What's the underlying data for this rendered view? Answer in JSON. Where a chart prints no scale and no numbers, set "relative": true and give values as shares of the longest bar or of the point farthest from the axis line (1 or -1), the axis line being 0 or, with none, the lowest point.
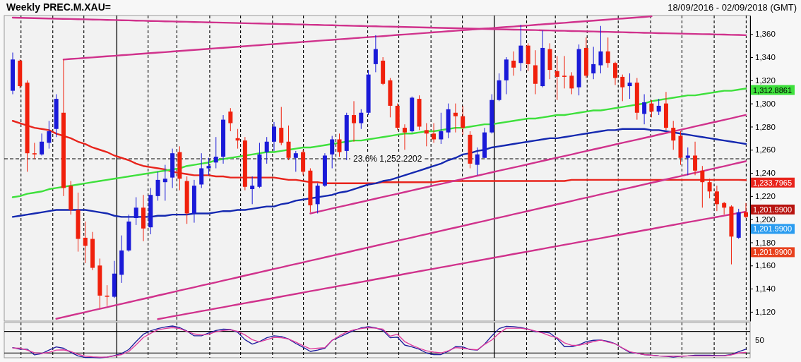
{
  "chart_data": [
    {
      "type": "candlestick",
      "title": "Weekly PREC.M.XAU=",
      "subtitle": "18/09/2016 - 02/09/2018 (GMT)",
      "categories": [
        null,
        null,
        null,
        null,
        null,
        null,
        null,
        null,
        null,
        null,
        null,
        null,
        null,
        null,
        null,
        null,
        null,
        null,
        null,
        null,
        null,
        null,
        null,
        null,
        null,
        null,
        null,
        null,
        null,
        null,
        null,
        null,
        null,
        null,
        null,
        null,
        null,
        null,
        null,
        null,
        null,
        null,
        null,
        null,
        null,
        null,
        null,
        null,
        null,
        null,
        null,
        null,
        null,
        null,
        null,
        null,
        null,
        null,
        null,
        null,
        null,
        null,
        null,
        null,
        null,
        null,
        null,
        null,
        null,
        null,
        null,
        null,
        null,
        null,
        null,
        null,
        null,
        null,
        null,
        null,
        null,
        null,
        null,
        null,
        null,
        null,
        null,
        null,
        null,
        null,
        null,
        null,
        null,
        null,
        null,
        null,
        null,
        null,
        null,
        null,
        null,
        null
      ],
      "ohlc": [
        [
          1311,
          1344,
          1308,
          1338
        ],
        [
          1337,
          1338,
          1313,
          1315
        ],
        [
          1318,
          1320,
          1241,
          1257
        ],
        [
          1257,
          1266,
          1252,
          1256
        ],
        [
          1256,
          1274,
          1255,
          1267
        ],
        [
          1266,
          1285,
          1261,
          1276
        ],
        [
          1278,
          1308,
          1271,
          1304
        ],
        [
          1292,
          1338,
          1220,
          1227
        ],
        [
          1229,
          1233,
          1204,
          1208
        ],
        [
          1208,
          1223,
          1172,
          1183
        ],
        [
          1184,
          1198,
          1162,
          1177
        ],
        [
          1183,
          1189,
          1156,
          1158
        ],
        [
          1160,
          1166,
          1123,
          1134
        ],
        [
          1134,
          1143,
          1125,
          1133
        ],
        [
          1133,
          1164,
          1132,
          1153
        ],
        [
          1152,
          1186,
          1145,
          1173
        ],
        [
          1173,
          1204,
          1172,
          1198
        ],
        [
          1201,
          1219,
          1195,
          1210
        ],
        [
          1210,
          1221,
          1181,
          1192
        ],
        [
          1193,
          1227,
          1187,
          1221
        ],
        [
          1220,
          1241,
          1216,
          1234
        ],
        [
          1232,
          1247,
          1216,
          1235
        ],
        [
          1236,
          1261,
          1227,
          1257
        ],
        [
          1258,
          1263,
          1225,
          1235
        ],
        [
          1233,
          1237,
          1196,
          1205
        ],
        [
          1205,
          1234,
          1197,
          1229
        ],
        [
          1230,
          1257,
          1227,
          1244
        ],
        [
          1244,
          1253,
          1238,
          1246
        ],
        [
          1249,
          1271,
          1244,
          1254
        ],
        [
          1254,
          1290,
          1248,
          1286
        ],
        [
          1293,
          1296,
          1276,
          1283
        ],
        [
          1270,
          1278,
          1261,
          1268
        ],
        [
          1268,
          1271,
          1225,
          1228
        ],
        [
          1226,
          1237,
          1213,
          1229
        ],
        [
          1228,
          1266,
          1227,
          1256
        ],
        [
          1258,
          1271,
          1248,
          1267
        ],
        [
          1267,
          1284,
          1259,
          1280
        ],
        [
          1279,
          1297,
          1264,
          1266
        ],
        [
          1267,
          1281,
          1251,
          1253
        ],
        [
          1253,
          1259,
          1241,
          1257
        ],
        [
          1258,
          1260,
          1238,
          1241
        ],
        [
          1242,
          1244,
          1206,
          1212
        ],
        [
          1213,
          1231,
          1205,
          1229
        ],
        [
          1229,
          1257,
          1228,
          1255
        ],
        [
          1256,
          1272,
          1244,
          1269
        ],
        [
          1269,
          1274,
          1254,
          1258
        ],
        [
          1259,
          1292,
          1251,
          1290
        ],
        [
          1290,
          1302,
          1267,
          1283
        ],
        [
          1283,
          1295,
          1278,
          1292
        ],
        [
          1292,
          1329,
          1290,
          1325
        ],
        [
          1334,
          1359,
          1327,
          1347
        ],
        [
          1337,
          1340,
          1316,
          1317
        ],
        [
          1320,
          1322,
          1288,
          1298
        ],
        [
          1298,
          1300,
          1277,
          1279
        ],
        [
          1279,
          1282,
          1260,
          1275
        ],
        [
          1276,
          1306,
          1275,
          1305
        ],
        [
          1304,
          1307,
          1277,
          1280
        ],
        [
          1277,
          1283,
          1263,
          1274
        ],
        [
          1274,
          1283,
          1266,
          1269
        ],
        [
          1269,
          1292,
          1265,
          1276
        ],
        [
          1275,
          1300,
          1270,
          1295
        ],
        [
          1292,
          1300,
          1275,
          1289
        ],
        [
          1289,
          1298,
          1273,
          1279
        ],
        [
          1273,
          1276,
          1244,
          1248
        ],
        [
          1247,
          1262,
          1238,
          1256
        ],
        [
          1253,
          1279,
          1253,
          1275
        ],
        [
          1275,
          1308,
          1274,
          1303
        ],
        [
          1303,
          1326,
          1302,
          1320
        ],
        [
          1320,
          1340,
          1308,
          1338
        ],
        [
          1337,
          1345,
          1324,
          1331
        ],
        [
          1335,
          1368,
          1328,
          1350
        ],
        [
          1350,
          1352,
          1328,
          1334
        ],
        [
          1333,
          1346,
          1308,
          1317
        ],
        [
          1315,
          1363,
          1314,
          1348
        ],
        [
          1347,
          1352,
          1321,
          1329
        ],
        [
          1328,
          1341,
          1303,
          1323
        ],
        [
          1324,
          1341,
          1313,
          1323
        ],
        [
          1324,
          1327,
          1308,
          1313
        ],
        [
          1314,
          1351,
          1307,
          1347
        ],
        [
          1348,
          1357,
          1322,
          1324
        ],
        [
          1326,
          1349,
          1321,
          1334
        ],
        [
          1333,
          1367,
          1326,
          1345
        ],
        [
          1345,
          1357,
          1331,
          1335
        ],
        [
          1335,
          1336,
          1316,
          1322
        ],
        [
          1323,
          1325,
          1302,
          1314
        ],
        [
          1315,
          1326,
          1304,
          1318
        ],
        [
          1318,
          1322,
          1286,
          1292
        ],
        [
          1291,
          1308,
          1282,
          1301
        ],
        [
          1300,
          1303,
          1288,
          1293
        ],
        [
          1293,
          1304,
          1290,
          1298
        ],
        [
          1300,
          1310,
          1277,
          1279
        ],
        [
          1279,
          1285,
          1260,
          1268
        ],
        [
          1272,
          1276,
          1247,
          1253
        ],
        [
          1253,
          1262,
          1238,
          1255
        ],
        [
          1255,
          1267,
          1238,
          1242
        ],
        [
          1242,
          1246,
          1210,
          1232
        ],
        [
          1232,
          1235,
          1218,
          1224
        ],
        [
          1224,
          1229,
          1207,
          1213
        ],
        [
          1214,
          1215,
          1204,
          1210
        ],
        [
          1211,
          1212,
          1161,
          1185
        ],
        [
          1184,
          1209,
          1183,
          1206
        ],
        [
          1206,
          1214,
          1201,
          1201.99
        ]
      ],
      "colors": [
        "#1a1ad8",
        "#f0200c",
        "#f0200c",
        "#f0200c",
        "#1a1ad8",
        "#1a1ad8",
        "#1a1ad8",
        "#f0200c",
        "#f0200c",
        "#f0200c",
        "#f0200c",
        "#f0200c",
        "#f0200c",
        "#f0200c",
        "#1a1ad8",
        "#1a1ad8",
        "#1a1ad8",
        "#1a1ad8",
        "#f0200c",
        "#1a1ad8",
        "#1a1ad8",
        "#1a1ad8",
        "#1a1ad8",
        "#f0200c",
        "#f0200c",
        "#1a1ad8",
        "#1a1ad8",
        "#1a1ad8",
        "#1a1ad8",
        "#1a1ad8",
        "#f0200c",
        "#f0200c",
        "#f0200c",
        "#1a1ad8",
        "#1a1ad8",
        "#1a1ad8",
        "#1a1ad8",
        "#f0200c",
        "#f0200c",
        "#1a1ad8",
        "#f0200c",
        "#f0200c",
        "#1a1ad8",
        "#1a1ad8",
        "#1a1ad8",
        "#f0200c",
        "#1a1ad8",
        "#f0200c",
        "#1a1ad8",
        "#1a1ad8",
        "#1a1ad8",
        "#f0200c",
        "#f0200c",
        "#f0200c",
        "#f0200c",
        "#1a1ad8",
        "#f0200c",
        "#f0200c",
        "#f0200c",
        "#1a1ad8",
        "#1a1ad8",
        "#f0200c",
        "#f0200c",
        "#f0200c",
        "#1a1ad8",
        "#1a1ad8",
        "#1a1ad8",
        "#1a1ad8",
        "#1a1ad8",
        "#f0200c",
        "#1a1ad8",
        "#f0200c",
        "#f0200c",
        "#1a1ad8",
        "#f0200c",
        "#f0200c",
        "#f0200c",
        "#f0200c",
        "#1a1ad8",
        "#f0200c",
        "#1a1ad8",
        "#1a1ad8",
        "#f0200c",
        "#f0200c",
        "#f0200c",
        "#1a1ad8",
        "#f0200c",
        "#1a1ad8",
        "#f0200c",
        "#1a1ad8",
        "#f0200c",
        "#f0200c",
        "#f0200c",
        "#1a1ad8",
        "#f0200c",
        "#f0200c",
        "#f0200c",
        "#f0200c",
        "#f0200c",
        "#f0200c",
        "#1a1ad8",
        "#f0200c"
      ],
      "series": [
        {
          "type": "line",
          "color": "#e8241c",
          "values": [
            1285,
            1283,
            1281,
            1279,
            1278,
            1277,
            1274,
            1272,
            1270,
            1267,
            1265,
            1262,
            1260,
            1258,
            1255,
            1253,
            1251,
            1248,
            1246,
            1245,
            1244,
            1243,
            1241,
            1240,
            1239,
            1238,
            1238,
            1238,
            1237,
            1237,
            1236,
            1236,
            1236,
            1236,
            1236,
            1236,
            1236,
            1235,
            1234,
            1234,
            1233,
            1232,
            1232,
            1231,
            1231,
            1231,
            1231,
            1231,
            1231,
            1231,
            1231,
            1232,
            1232,
            1232,
            1232,
            1232,
            1232,
            1232,
            1232,
            1233,
            1233,
            1233,
            1233,
            1233,
            1233,
            1233,
            1233,
            1233,
            1233,
            1233,
            1233,
            1233,
            1233,
            1233,
            1233,
            1233,
            1233,
            1234,
            1234,
            1234,
            1234,
            1234,
            1234,
            1234,
            1234,
            1234,
            1234,
            1234,
            1234,
            1234,
            1234,
            1234,
            1234,
            1234,
            1234,
            1234,
            1234,
            1234,
            1234,
            1234,
            1234,
            1233.7965
          ],
          "value_labels": [
            null,
            null,
            null,
            null,
            null,
            null,
            null,
            null,
            null,
            null,
            null,
            null,
            null,
            null,
            null,
            null,
            null,
            null,
            null,
            null,
            null,
            null,
            null,
            null,
            null,
            null,
            null,
            null,
            null,
            null,
            null,
            null,
            null,
            null,
            null,
            null,
            null,
            null,
            null,
            null,
            null,
            null,
            null,
            null,
            null,
            null,
            null,
            null,
            null,
            null,
            null,
            null,
            null,
            null,
            null,
            null,
            null,
            null,
            null,
            null,
            null,
            null,
            null,
            null,
            null,
            null,
            null,
            null,
            null,
            null,
            null,
            null,
            null,
            null,
            null,
            null,
            null,
            null,
            null,
            null,
            null,
            null,
            null,
            null,
            null,
            null,
            null,
            null,
            null,
            null,
            null,
            null,
            null,
            null,
            null,
            null,
            null,
            null,
            null,
            null,
            null,
            "1,233.7965"
          ]
        },
        {
          "type": "line",
          "color": "#1428b0",
          "values": [
            1202,
            1203,
            1204,
            1205,
            1206,
            1207,
            1208,
            1208,
            1208,
            1208,
            1208,
            1207,
            1206,
            1205,
            1203,
            1202,
            1202,
            1202,
            1202,
            1202,
            1203,
            1203,
            1204,
            1204,
            1204,
            1205,
            1205,
            1205,
            1206,
            1207,
            1207,
            1208,
            1208,
            1209,
            1210,
            1211,
            1211,
            1213,
            1214,
            1216,
            1217,
            1218,
            1219,
            1220,
            1221,
            1223,
            1224,
            1226,
            1228,
            1230,
            1231,
            1233,
            1234,
            1236,
            1238,
            1240,
            1242,
            1244,
            1246,
            1248,
            1251,
            1253,
            1256,
            1257,
            1259,
            1260,
            1262,
            1263,
            1264,
            1265,
            1266,
            1267,
            1268,
            1269,
            1270,
            1270,
            1271,
            1272,
            1273,
            1274,
            1275,
            1276,
            1277,
            1277,
            1278,
            1278,
            1278,
            1278,
            1277,
            1277,
            1276,
            1275,
            1274,
            1273,
            1272,
            1271,
            1270,
            1269,
            1268,
            1267,
            1266,
            1265
          ]
        },
        {
          "type": "line",
          "color": "#3ee03c",
          "values": [
            1219,
            1220,
            1222,
            1223,
            1224,
            1226,
            1227,
            1228,
            1229,
            1230,
            1231,
            1232,
            1233,
            1234,
            1235,
            1236,
            1237,
            1238,
            1239,
            1240,
            1241,
            1242,
            1243,
            1244,
            1246,
            1247,
            1248,
            1249,
            1251,
            1252,
            1253,
            1254,
            1255,
            1256,
            1257,
            1258,
            1258,
            1259,
            1260,
            1261,
            1262,
            1262,
            1263,
            1264,
            1265,
            1266,
            1267,
            1268,
            1268,
            1269,
            1270,
            1271,
            1272,
            1273,
            1274,
            1274,
            1275,
            1276,
            1276,
            1277,
            1278,
            1279,
            1279,
            1280,
            1281,
            1282,
            1282,
            1283,
            1284,
            1285,
            1286,
            1287,
            1287,
            1288,
            1289,
            1290,
            1290,
            1291,
            1292,
            1293,
            1294,
            1294,
            1295,
            1296,
            1297,
            1298,
            1299,
            1300,
            1302,
            1303,
            1304,
            1305,
            1306,
            1307,
            1307,
            1308,
            1309,
            1310,
            1311,
            1311,
            1312,
            1312.8861
          ],
          "value_labels": [
            null,
            null,
            null,
            null,
            null,
            null,
            null,
            null,
            null,
            null,
            null,
            null,
            null,
            null,
            null,
            null,
            null,
            null,
            null,
            null,
            null,
            null,
            null,
            null,
            null,
            null,
            null,
            null,
            null,
            null,
            null,
            null,
            null,
            null,
            null,
            null,
            null,
            null,
            null,
            null,
            null,
            null,
            null,
            null,
            null,
            null,
            null,
            null,
            null,
            null,
            null,
            null,
            null,
            null,
            null,
            null,
            null,
            null,
            null,
            null,
            null,
            null,
            null,
            null,
            null,
            null,
            null,
            null,
            null,
            null,
            null,
            null,
            null,
            null,
            null,
            null,
            null,
            null,
            null,
            null,
            null,
            null,
            null,
            null,
            null,
            null,
            null,
            null,
            null,
            null,
            null,
            null,
            null,
            null,
            null,
            null,
            null,
            null,
            null,
            null,
            null,
            "1,312.8861"
          ]
        },
        {
          "type": "line",
          "color": "#d0328c",
          "values": [
            1374.2,
            1374.0,
            1373.9,
            1373.7,
            1373.6,
            1373.4,
            1373.3,
            1373.1,
            1373.0,
            1372.8,
            1372.7,
            1372.5,
            1372.4,
            1372.2,
            1372.1,
            1371.9,
            1371.8,
            1371.6,
            1371.5,
            1371.3,
            1371.2,
            1371.0,
            1370.9,
            1370.7,
            1370.6,
            1370.4,
            1370.3,
            1370.1,
            1370.0,
            1369.8,
            1369.7,
            1369.5,
            1369.4,
            1369.2,
            1369.1,
            1368.9,
            1368.8,
            1368.6,
            1368.5,
            1368.3,
            1368.2,
            1368.0,
            1367.9,
            1367.7,
            1367.6,
            1367.4,
            1367.3,
            1367.1,
            1367.0,
            1366.8,
            1366.7,
            1366.5,
            1366.4,
            1366.2,
            1366.1,
            1365.9,
            1365.8,
            1365.6,
            1365.5,
            1365.3,
            1365.2,
            1365.0,
            1364.9,
            1364.7,
            1364.6,
            1364.4,
            1364.3,
            1364.1,
            1364.0,
            1363.8,
            1363.7,
            1363.5,
            1363.4,
            1363.2,
            1363.1,
            1362.9,
            1362.8,
            1362.6,
            1362.5,
            1362.3,
            1362.2,
            1362.0,
            1361.9,
            1361.7,
            1361.6,
            1361.4,
            1361.3,
            1361.1,
            1361.0,
            1360.8,
            1360.7,
            1360.5,
            1360.4,
            1360.2,
            1360.1,
            1359.9,
            1359.8,
            1359.6,
            1359.5,
            1359.3,
            1359.2,
            1359.0
          ]
        },
        {
          "type": "line",
          "color": "#d0328c",
          "values": [
            null,
            null,
            null,
            null,
            null,
            null,
            null,
            1338.0,
            1338.5,
            1338.9,
            1339.4,
            1339.8,
            1340.3,
            1340.8,
            1341.2,
            1341.7,
            1342.1,
            1342.6,
            1343.1,
            1343.5,
            1344.0,
            1344.4,
            1344.9,
            1345.4,
            1345.8,
            1346.3,
            1346.7,
            1347.2,
            1347.7,
            1348.1,
            1348.6,
            1349.0,
            1349.5,
            1350.0,
            1350.4,
            1350.9,
            1351.3,
            1351.8,
            1352.3,
            1352.7,
            1353.2,
            1353.6,
            1354.1,
            1354.6,
            1355.0,
            1355.5,
            1355.9,
            1356.4,
            1356.9,
            1357.3,
            1357.8,
            1358.2,
            1358.7,
            1359.2,
            1359.6,
            1360.1,
            1360.5,
            1361.0,
            1361.5,
            1361.9,
            1362.4,
            1362.8,
            1363.3,
            1363.8,
            1364.2,
            1364.7,
            1365.1,
            1365.6,
            1366.1,
            1366.5,
            1367.0,
            1367.4,
            1367.9,
            1368.4,
            1368.8,
            1369.3,
            1369.7,
            1370.2,
            1370.7,
            1371.1,
            1371.6,
            1372.0,
            1372.5,
            1373.0,
            1373.4,
            1373.9,
            1374.3,
            1374.8,
            1375.3,
            null,
            null,
            null,
            null,
            null,
            null,
            null,
            null,
            null,
            null,
            null,
            null,
            null
          ]
        },
        {
          "type": "line",
          "color": "#d0328c",
          "values": [
            null,
            null,
            null,
            null,
            null,
            null,
            null,
            null,
            null,
            null,
            null,
            null,
            null,
            null,
            null,
            null,
            null,
            null,
            null,
            null,
            null,
            null,
            null,
            null,
            null,
            null,
            null,
            null,
            null,
            null,
            null,
            null,
            null,
            null,
            null,
            null,
            null,
            null,
            null,
            null,
            null,
            1205.0,
            1206.4,
            1207.8,
            1209.3,
            1210.7,
            1212.1,
            1213.5,
            1214.9,
            1216.3,
            1217.8,
            1219.2,
            1220.6,
            1222.0,
            1223.4,
            1224.9,
            1226.3,
            1227.7,
            1229.1,
            1230.5,
            1231.9,
            1233.4,
            1234.8,
            1236.2,
            1237.6,
            1239.0,
            1240.5,
            1241.9,
            1243.3,
            1244.7,
            1246.1,
            1247.5,
            1249.0,
            1250.4,
            1251.8,
            1253.2,
            1254.6,
            1256.0,
            1257.5,
            1258.9,
            1260.3,
            1261.7,
            1263.1,
            1264.6,
            1266.0,
            1267.4,
            1268.8,
            1270.2,
            1271.6,
            1273.1,
            1274.5,
            1275.9,
            1277.3,
            1278.7,
            1280.2,
            1281.6,
            1283.0,
            1284.4,
            1285.8,
            1287.2,
            1288.7,
            1290.1
          ]
        },
        {
          "type": "line",
          "color": "#d0328c",
          "values": [
            null,
            null,
            null,
            null,
            null,
            null,
            1114.0,
            1115.4,
            1116.9,
            1118.3,
            1119.7,
            1121.2,
            1122.6,
            1124.0,
            1125.5,
            1126.9,
            1128.3,
            1129.8,
            1131.2,
            1132.6,
            1134.1,
            1135.5,
            1136.9,
            1138.4,
            1139.8,
            1141.2,
            1142.7,
            1144.1,
            1145.5,
            1147.0,
            1148.4,
            1149.8,
            1151.3,
            1152.7,
            1154.1,
            1155.6,
            1157.0,
            1158.4,
            1159.9,
            1161.3,
            1162.7,
            1164.2,
            1165.6,
            1167.0,
            1168.5,
            1169.9,
            1171.3,
            1172.8,
            1174.2,
            1175.6,
            1177.1,
            1178.5,
            1179.9,
            1181.4,
            1182.8,
            1184.2,
            1185.7,
            1187.1,
            1188.5,
            1190.0,
            1191.4,
            1192.8,
            1194.2,
            1195.7,
            1197.1,
            1198.5,
            1200.0,
            1201.4,
            1202.8,
            1204.3,
            1205.7,
            1207.1,
            1208.6,
            1210.0,
            1211.4,
            1212.9,
            1214.3,
            1215.7,
            1217.2,
            1218.6,
            1220.0,
            1221.5,
            1222.9,
            1224.3,
            1225.8,
            1227.2,
            1228.6,
            1230.1,
            1231.5,
            1232.9,
            1234.4,
            1235.8,
            1237.2,
            1238.7,
            1240.1,
            1241.5,
            1243.0,
            1244.4,
            1245.8,
            1247.3,
            1248.7,
            1250.1
          ]
        },
        {
          "type": "line",
          "color": "#d0328c",
          "values": [
            null,
            null,
            null,
            null,
            null,
            null,
            null,
            null,
            null,
            null,
            null,
            null,
            null,
            null,
            null,
            null,
            null,
            null,
            null,
            null,
            1113.7,
            1114.8,
            1116.0,
            1117.1,
            1118.3,
            1119.4,
            1120.6,
            1121.7,
            1122.9,
            1124.0,
            1125.2,
            1126.3,
            1127.5,
            1128.6,
            1129.7,
            1130.9,
            1132.0,
            1133.2,
            1134.3,
            1135.5,
            1136.6,
            1137.8,
            1138.9,
            1140.1,
            1141.2,
            1142.4,
            1143.5,
            1144.6,
            1145.8,
            1146.9,
            1148.1,
            1149.2,
            1150.4,
            1151.5,
            1152.7,
            1153.8,
            1155.0,
            1156.1,
            1157.2,
            1158.4,
            1159.5,
            1160.7,
            1161.8,
            1163.0,
            1164.1,
            1165.3,
            1166.4,
            1167.6,
            1168.7,
            1169.9,
            1171.0,
            1172.1,
            1173.3,
            1174.4,
            1175.6,
            1176.7,
            1177.9,
            1179.0,
            1180.2,
            1181.3,
            1182.5,
            1183.6,
            1184.8,
            1185.9,
            1187.0,
            1188.2,
            1189.3,
            1190.5,
            1191.6,
            1192.8,
            1193.9,
            1195.1,
            1196.2,
            1197.4,
            1198.5,
            1199.7,
            1200.8,
            1201.9,
            1203.1,
            1204.2,
            1205.4,
            1206.5
          ]
        }
      ],
      "ylim": [
        1112,
        1376
      ],
      "yticks": [
        {
          "value": 1120,
          "label": "1,120"
        },
        {
          "value": 1140,
          "label": "1,140"
        },
        {
          "value": 1160,
          "label": "1,160"
        },
        {
          "value": 1180,
          "label": "1,180"
        },
        {
          "value": 1200,
          "label": "1,200"
        },
        {
          "value": 1220,
          "label": "1,220"
        },
        {
          "value": 1240,
          "label": "1,240"
        },
        {
          "value": 1260,
          "label": "1,260"
        },
        {
          "value": 1280,
          "label": "1,280"
        },
        {
          "value": 1300,
          "label": "1,300"
        },
        {
          "value": 1320,
          "label": "1,320"
        },
        {
          "value": 1340,
          "label": "1,340"
        },
        {
          "value": 1360,
          "label": "1,360"
        }
      ],
      "ref_lines": [
        {
          "axis": "y",
          "value": 1252.2202,
          "label": "23.6% 1,252.2202",
          "line_style": "dashed",
          "color": "#000000"
        }
      ],
      "annotations": [
        "1,201.9900",
        "1,201.9900",
        "1,201.9900"
      ],
      "grid": "x",
      "tick_labels": "y"
    },
    {
      "type": "line",
      "relative": true,
      "categories": [
        null,
        null,
        null,
        null,
        null,
        null,
        null,
        null,
        null,
        null,
        null,
        null,
        null,
        null,
        null,
        null,
        null,
        null,
        null,
        null,
        null,
        null,
        null,
        null,
        null,
        null,
        null,
        null,
        null,
        null,
        null,
        null,
        null,
        null,
        null,
        null,
        null,
        null,
        null,
        null,
        null,
        null,
        null,
        null,
        null,
        null,
        null,
        null,
        null,
        null,
        null,
        null,
        null,
        null,
        null,
        null,
        null,
        null,
        null,
        null,
        null,
        null,
        null,
        null,
        null,
        null,
        null,
        null,
        null,
        null,
        null,
        null,
        null,
        null,
        null,
        null,
        null,
        null,
        null,
        null,
        null,
        null,
        null,
        null,
        null,
        null,
        null,
        null,
        null,
        null,
        null,
        null,
        null,
        null,
        null,
        null,
        null,
        null,
        null,
        null,
        null,
        null
      ],
      "series": [
        {
          "color": "#1c1c9c",
          "values": [
            0.32,
            0.27,
            0.27,
            0.09,
            0.13,
            0.24,
            0.34,
            0.3,
            0.17,
            0.06,
            0.01,
            0.01,
            0,
            0.02,
            0.07,
            0.13,
            0.26,
            0.51,
            0.74,
            0.85,
            0.92,
            0.97,
            1,
            0.95,
            0.84,
            0.69,
            0.69,
            0.78,
            0.86,
            0.9,
            0.89,
            0.8,
            0.57,
            0.43,
            0.51,
            0.63,
            0.69,
            0.67,
            0.59,
            0.45,
            0.33,
            0.2,
            0.24,
            0.3,
            0.55,
            0.65,
            0.76,
            0.86,
            0.94,
            0.98,
            0.94,
            0.86,
            0.63,
            0.65,
            0.4,
            0.34,
            0.27,
            0.15,
            0.1,
            0.1,
            0.2,
            0.35,
            0.34,
            0.26,
            0.24,
            0.43,
            0.69,
            0.92,
            0.99,
            0.98,
            0.95,
            0.9,
            0.82,
            0.81,
            0.78,
            0.6,
            0.35,
            0.35,
            0.41,
            0.51,
            0.55,
            0.56,
            0.52,
            0.44,
            0.3,
            0.17,
            0.14,
            0.1,
            0.08,
            0.06,
            0.05,
            0.02,
            0.05,
            0.06,
            0.08,
            0.08,
            0.08,
            0.07,
            0.07,
            0.1,
            0.19,
            0.27
          ]
        },
        {
          "color": "#e0389c",
          "values": [
            0.31,
            0.3,
            0.24,
            0.16,
            0.14,
            0.17,
            0.24,
            0.25,
            0.2,
            0.11,
            0.05,
            0.03,
            0.02,
            0.02,
            0.06,
            0.1,
            0.2,
            0.41,
            0.64,
            0.77,
            0.88,
            0.92,
            0.95,
            0.92,
            0.83,
            0.75,
            0.72,
            0.74,
            0.82,
            0.86,
            0.88,
            0.83,
            0.72,
            0.57,
            0.5,
            0.57,
            0.64,
            0.63,
            0.59,
            0.49,
            0.38,
            0.28,
            0.3,
            0.32,
            0.55,
            0.69,
            0.81,
            0.88,
            0.92,
            0.95,
            0.93,
            0.9,
            0.68,
            0.74,
            0.51,
            0.39,
            0.3,
            0.22,
            0.18,
            0.15,
            0.22,
            0.32,
            0.3,
            0.27,
            0.25,
            0.42,
            0.56,
            0.77,
            0.93,
            0.93,
            0.93,
            0.9,
            0.84,
            0.78,
            0.69,
            0.63,
            0.47,
            0.39,
            0.39,
            0.45,
            0.51,
            0.56,
            0.49,
            0.44,
            0.31,
            0.19,
            0.14,
            0.1,
            0.08,
            0.06,
            0.05,
            0.05,
            0.05,
            0.06,
            0.06,
            0.06,
            0.06,
            0.06,
            0.06,
            0.09,
            0.15,
            0.17
          ]
        }
      ],
      "ref_lines": [
        {
          "axis": "y",
          "value": 0.83,
          "color": "#000000"
        },
        {
          "axis": "y",
          "value": 0.15,
          "color": "#000000"
        }
      ],
      "annotations": [
        "50"
      ],
      "grid": "x"
    }
  ]
}
